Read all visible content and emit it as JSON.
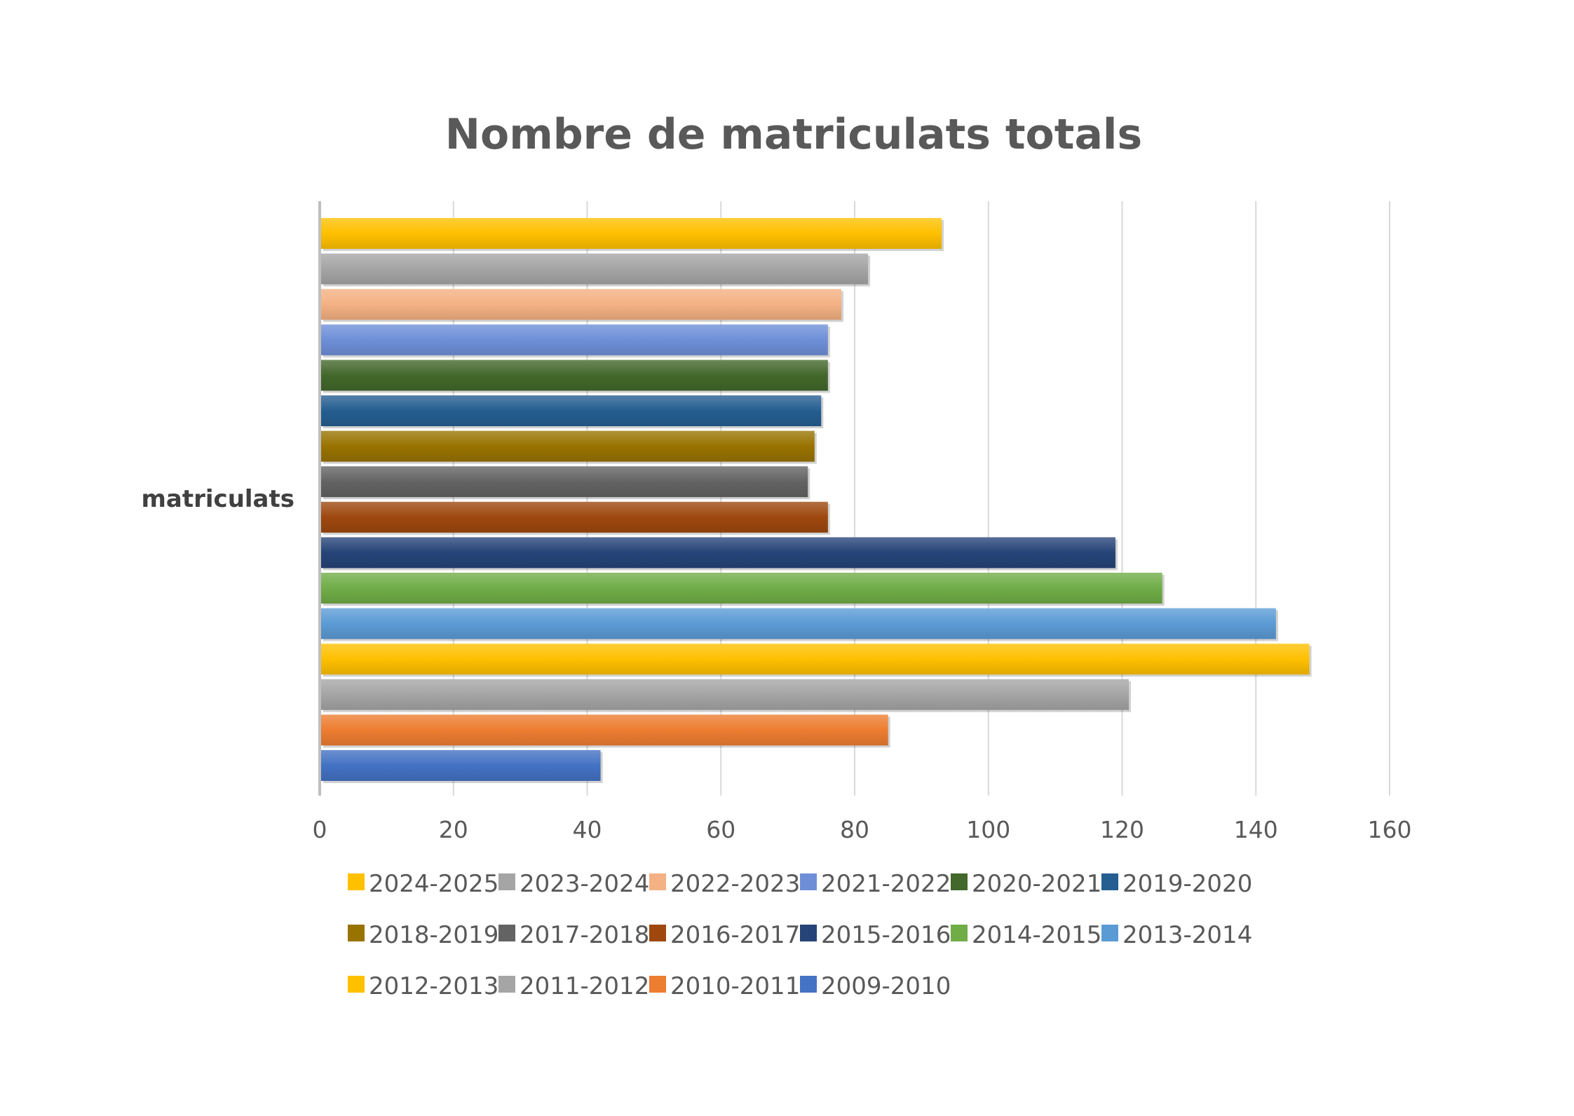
{
  "chart_data": {
    "type": "bar",
    "orientation": "horizontal",
    "title": "Nombre de matriculats totals",
    "categories": [
      "matriculats"
    ],
    "xlim": [
      0,
      160
    ],
    "x_ticks": [
      "0",
      "20",
      "40",
      "60",
      "80",
      "100",
      "120",
      "140",
      "160"
    ],
    "grid": true,
    "legend_position": "bottom",
    "series": [
      {
        "name": "2024-2025",
        "values": [
          93
        ],
        "color": "#FFC000"
      },
      {
        "name": "2023-2024",
        "values": [
          82
        ],
        "color": "#A5A5A5"
      },
      {
        "name": "2022-2023",
        "values": [
          78
        ],
        "color": "#F4B183"
      },
      {
        "name": "2021-2022",
        "values": [
          76
        ],
        "color": "#6E8FD8"
      },
      {
        "name": "2020-2021",
        "values": [
          76
        ],
        "color": "#43682B"
      },
      {
        "name": "2019-2020",
        "values": [
          75
        ],
        "color": "#255E91"
      },
      {
        "name": "2018-2019",
        "values": [
          74
        ],
        "color": "#997300"
      },
      {
        "name": "2017-2018",
        "values": [
          73
        ],
        "color": "#636363"
      },
      {
        "name": "2016-2017",
        "values": [
          76
        ],
        "color": "#9E480E"
      },
      {
        "name": "2015-2016",
        "values": [
          119
        ],
        "color": "#264478"
      },
      {
        "name": "2014-2015",
        "values": [
          126
        ],
        "color": "#70AD47"
      },
      {
        "name": "2013-2014",
        "values": [
          143
        ],
        "color": "#5B9BD5"
      },
      {
        "name": "2012-2013",
        "values": [
          148
        ],
        "color": "#FFC000"
      },
      {
        "name": "2011-2012",
        "values": [
          121
        ],
        "color": "#A5A5A5"
      },
      {
        "name": "2010-2011",
        "values": [
          85
        ],
        "color": "#ED7D31"
      },
      {
        "name": "2009-2010",
        "values": [
          42
        ],
        "color": "#4472C4"
      }
    ]
  }
}
